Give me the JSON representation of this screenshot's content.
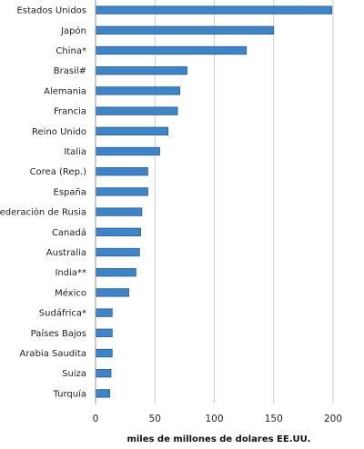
{
  "chart_data": {
    "type": "bar",
    "orientation": "horizontal",
    "categories": [
      "Estados Unidos",
      "Japón",
      "China*",
      "Brasil#",
      "Alemania",
      "Francia",
      "Reino Unido",
      "Italia",
      "Corea (Rep.)",
      "España",
      "Federación de Rusia",
      "Canadá",
      "Australia",
      "India**",
      "México",
      "Sudáfrica*",
      "Países Bajos",
      "Arabia Saudita",
      "Suiza",
      "Turquía"
    ],
    "values": [
      199,
      150,
      127,
      77,
      71,
      69,
      61,
      54,
      44,
      44,
      39,
      38,
      37,
      34,
      28,
      14,
      14,
      14,
      13,
      12
    ],
    "xlabel": "miles de millones de dolares EE.UU.",
    "ylabel": "",
    "xlim": [
      0,
      200
    ],
    "xticks": [
      0,
      50,
      100,
      150,
      200
    ],
    "grid": "vertical",
    "bar_color": "#3f84c6",
    "bar_edge_color": "#2a5f96",
    "grid_color": "#cfcfcf"
  }
}
